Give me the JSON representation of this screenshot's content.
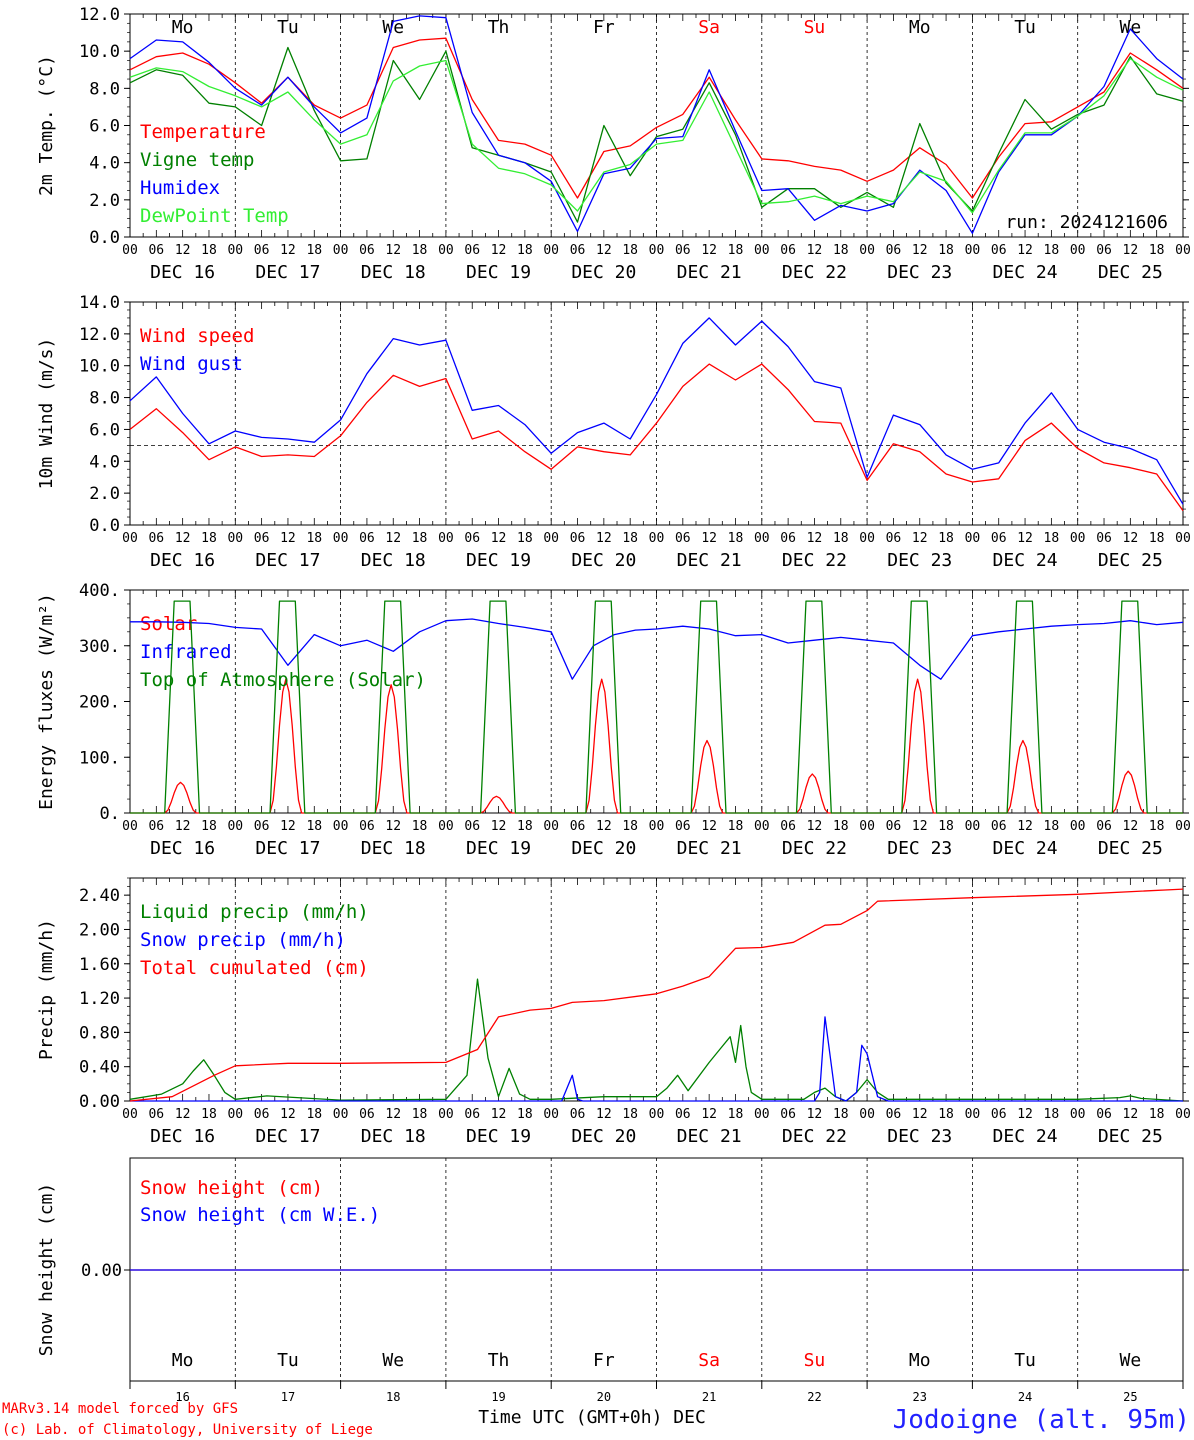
{
  "run_label": "run: 2024121606",
  "colors": {
    "red": "#ff0000",
    "green": "#008000",
    "blue": "#0000ff",
    "light_green": "#33ee33",
    "grid": "#000000"
  },
  "footer": {
    "model": "MARv3.14 model forced by GFS",
    "credit": "(c) Lab. of Climatology, University of Liege",
    "xlabel": "Time UTC (GMT+0h) DEC",
    "station": "Jodoigne (alt. 95m)"
  },
  "chart_data": [
    {
      "type": "line",
      "ylabel": "2m Temp. (°C)",
      "ylim": [
        0,
        12
      ],
      "ytick_labels": [
        "0.0",
        "2.0",
        "4.0",
        "6.0",
        "8.0",
        "10.0",
        "12.0"
      ],
      "day_abbrs": [
        "Mo",
        "Tu",
        "We",
        "Th",
        "Fr",
        "Sa",
        "Su",
        "Mo",
        "Tu",
        "We"
      ],
      "hour_ticks": [
        "00",
        "06",
        "12",
        "18"
      ],
      "date_labels": [
        "DEC 16",
        "DEC 17",
        "DEC 18",
        "DEC 19",
        "DEC 20",
        "DEC 21",
        "DEC 22",
        "DEC 23",
        "DEC 24",
        "DEC 25"
      ],
      "x_unit": "days since Dec 16 00 UTC",
      "xlim": [
        0,
        10
      ],
      "series": [
        {
          "name": "Temperature",
          "color": "#ff0000",
          "x": [
            0,
            0.25,
            0.5,
            0.75,
            1,
            1.25,
            1.5,
            1.75,
            2,
            2.25,
            2.5,
            2.75,
            3,
            3.25,
            3.5,
            3.75,
            4,
            4.25,
            4.5,
            4.75,
            5,
            5.25,
            5.5,
            5.75,
            6,
            6.25,
            6.5,
            6.75,
            7,
            7.25,
            7.5,
            7.75,
            8,
            8.25,
            8.5,
            8.75,
            9,
            9.25,
            9.5,
            9.75,
            10
          ],
          "y": [
            9.0,
            9.7,
            9.9,
            9.3,
            8.3,
            7.2,
            8.6,
            7.1,
            6.4,
            7.1,
            10.2,
            10.6,
            10.7,
            7.4,
            5.2,
            5.0,
            4.4,
            2.1,
            4.6,
            4.9,
            5.9,
            6.6,
            8.6,
            6.3,
            4.2,
            4.1,
            3.8,
            3.6,
            3.0,
            3.6,
            4.8,
            3.9,
            2.1,
            4.3,
            6.1,
            6.2,
            7.0,
            7.8,
            9.9,
            9.0,
            8.0
          ]
        },
        {
          "name": "Vigne temp",
          "color": "#008000",
          "x": [
            0,
            0.25,
            0.5,
            0.75,
            1,
            1.25,
            1.5,
            1.75,
            2,
            2.25,
            2.5,
            2.75,
            3,
            3.25,
            3.5,
            3.75,
            4,
            4.25,
            4.5,
            4.75,
            5,
            5.25,
            5.5,
            5.75,
            6,
            6.25,
            6.5,
            6.75,
            7,
            7.25,
            7.5,
            7.75,
            8,
            8.25,
            8.5,
            8.75,
            9,
            9.25,
            9.5,
            9.75,
            10
          ],
          "y": [
            8.3,
            9.0,
            8.7,
            7.2,
            7.0,
            6.0,
            10.2,
            6.8,
            4.1,
            4.2,
            9.5,
            7.4,
            10.0,
            4.8,
            4.4,
            4.0,
            3.5,
            0.8,
            6.0,
            3.3,
            5.4,
            5.8,
            8.3,
            5.5,
            1.6,
            2.6,
            2.6,
            1.6,
            2.4,
            1.6,
            6.1,
            2.9,
            1.4,
            4.5,
            7.4,
            5.8,
            6.6,
            7.1,
            9.7,
            7.7,
            7.3
          ]
        },
        {
          "name": "Humidex",
          "color": "#0000ff",
          "x": [
            0,
            0.25,
            0.5,
            0.75,
            1,
            1.25,
            1.5,
            1.75,
            2,
            2.25,
            2.5,
            2.75,
            3,
            3.25,
            3.5,
            3.75,
            4,
            4.25,
            4.5,
            4.75,
            5,
            5.25,
            5.5,
            5.75,
            6,
            6.25,
            6.5,
            6.75,
            7,
            7.25,
            7.5,
            7.75,
            8,
            8.25,
            8.5,
            8.75,
            9,
            9.25,
            9.5,
            9.75,
            10
          ],
          "y": [
            9.6,
            10.6,
            10.5,
            9.4,
            8.0,
            7.1,
            8.6,
            7.0,
            5.6,
            6.4,
            11.6,
            11.9,
            11.8,
            6.7,
            4.4,
            4.0,
            3.0,
            0.3,
            3.4,
            3.7,
            5.3,
            5.4,
            9.0,
            5.7,
            2.5,
            2.6,
            0.9,
            1.7,
            1.4,
            1.8,
            3.6,
            2.5,
            0.2,
            3.5,
            5.5,
            5.5,
            6.5,
            8.1,
            11.2,
            9.6,
            8.5
          ]
        },
        {
          "name": "DewPoint Temp",
          "color": "#33ee33",
          "x": [
            0,
            0.25,
            0.5,
            0.75,
            1,
            1.25,
            1.5,
            1.75,
            2,
            2.25,
            2.5,
            2.75,
            3,
            3.25,
            3.5,
            3.75,
            4,
            4.25,
            4.5,
            4.75,
            5,
            5.25,
            5.5,
            5.75,
            6,
            6.25,
            6.5,
            6.75,
            7,
            7.25,
            7.5,
            7.75,
            8,
            8.25,
            8.5,
            8.75,
            9,
            9.25,
            9.5,
            9.75,
            10
          ],
          "y": [
            8.6,
            9.1,
            8.9,
            8.1,
            7.6,
            7.0,
            7.8,
            6.3,
            5.0,
            5.5,
            8.4,
            9.2,
            9.5,
            5.0,
            3.7,
            3.4,
            2.8,
            1.4,
            3.5,
            3.9,
            5.0,
            5.2,
            7.8,
            4.8,
            1.8,
            1.9,
            2.2,
            1.8,
            2.2,
            1.9,
            3.5,
            3.0,
            1.3,
            3.6,
            5.6,
            5.6,
            6.5,
            7.6,
            9.6,
            8.6,
            7.9
          ]
        }
      ]
    },
    {
      "type": "line",
      "ylabel": "10m Wind (m/s)",
      "ylim": [
        0,
        14
      ],
      "ytick_labels": [
        "0.0",
        "2.0",
        "4.0",
        "6.0",
        "8.0",
        "10.0",
        "12.0",
        "14.0"
      ],
      "reference_line": 5,
      "hour_ticks": [
        "00",
        "06",
        "12",
        "18"
      ],
      "date_labels": [
        "DEC 16",
        "DEC 17",
        "DEC 18",
        "DEC 19",
        "DEC 20",
        "DEC 21",
        "DEC 22",
        "DEC 23",
        "DEC 24",
        "DEC 25"
      ],
      "xlim": [
        0,
        10
      ],
      "series": [
        {
          "name": "Wind speed",
          "color": "#ff0000",
          "x": [
            0,
            0.25,
            0.5,
            0.75,
            1,
            1.25,
            1.5,
            1.75,
            2,
            2.25,
            2.5,
            2.75,
            3,
            3.25,
            3.5,
            3.75,
            4,
            4.25,
            4.5,
            4.75,
            5,
            5.25,
            5.5,
            5.75,
            6,
            6.25,
            6.5,
            6.75,
            7,
            7.25,
            7.5,
            7.75,
            8,
            8.25,
            8.5,
            8.75,
            9,
            9.25,
            9.5,
            9.75,
            10
          ],
          "y": [
            6.0,
            7.3,
            5.8,
            4.1,
            4.9,
            4.3,
            4.4,
            4.3,
            5.6,
            7.7,
            9.4,
            8.7,
            9.2,
            5.4,
            5.9,
            4.6,
            3.5,
            4.9,
            4.6,
            4.4,
            6.4,
            8.7,
            10.1,
            9.1,
            10.1,
            8.5,
            6.5,
            6.4,
            2.8,
            5.1,
            4.6,
            3.2,
            2.7,
            2.9,
            5.3,
            6.4,
            4.8,
            3.9,
            3.6,
            3.2,
            0.9
          ]
        },
        {
          "name": "Wind gust",
          "color": "#0000ff",
          "x": [
            0,
            0.25,
            0.5,
            0.75,
            1,
            1.25,
            1.5,
            1.75,
            2,
            2.25,
            2.5,
            2.75,
            3,
            3.25,
            3.5,
            3.75,
            4,
            4.25,
            4.5,
            4.75,
            5,
            5.25,
            5.5,
            5.75,
            6,
            6.25,
            6.5,
            6.75,
            7,
            7.25,
            7.5,
            7.75,
            8,
            8.25,
            8.5,
            8.75,
            9,
            9.25,
            9.5,
            9.75,
            10
          ],
          "y": [
            7.8,
            9.3,
            7.0,
            5.1,
            5.9,
            5.5,
            5.4,
            5.2,
            6.6,
            9.5,
            11.7,
            11.3,
            11.6,
            7.2,
            7.5,
            6.3,
            4.5,
            5.8,
            6.4,
            5.4,
            8.2,
            11.4,
            13.0,
            11.3,
            12.8,
            11.2,
            9.0,
            8.6,
            3.0,
            6.9,
            6.3,
            4.4,
            3.5,
            3.9,
            6.4,
            8.3,
            6.0,
            5.2,
            4.8,
            4.1,
            1.3
          ]
        }
      ]
    },
    {
      "type": "line",
      "ylabel": "Energy fluxes (W/m²)",
      "ylim": [
        0,
        400
      ],
      "ytick_labels": [
        "0.",
        "100.",
        "200.",
        "300.",
        "400."
      ],
      "hour_ticks": [
        "00",
        "06",
        "12",
        "18"
      ],
      "date_labels": [
        "DEC 16",
        "DEC 17",
        "DEC 18",
        "DEC 19",
        "DEC 20",
        "DEC 21",
        "DEC 22",
        "DEC 23",
        "DEC 24",
        "DEC 25"
      ],
      "xlim": [
        0,
        10
      ],
      "series": [
        {
          "name": "Solar",
          "color": "#ff0000",
          "daily_peaks": [
            55,
            240,
            230,
            30,
            240,
            130,
            70,
            240,
            130,
            75
          ]
        },
        {
          "name": "Infrared",
          "color": "#0000ff",
          "x": [
            0,
            0.25,
            0.5,
            0.75,
            1,
            1.25,
            1.5,
            1.75,
            2,
            2.25,
            2.5,
            2.75,
            3,
            3.25,
            3.5,
            3.75,
            4,
            4.2,
            4.4,
            4.6,
            4.8,
            5,
            5.25,
            5.5,
            5.75,
            6,
            6.25,
            6.5,
            6.75,
            7,
            7.25,
            7.5,
            7.7,
            8,
            8.25,
            8.5,
            8.75,
            9,
            9.25,
            9.5,
            9.75,
            10
          ],
          "y": [
            343,
            343,
            342,
            340,
            333,
            330,
            265,
            320,
            300,
            310,
            290,
            325,
            345,
            348,
            340,
            333,
            325,
            240,
            300,
            320,
            328,
            330,
            335,
            330,
            318,
            320,
            305,
            310,
            315,
            310,
            305,
            265,
            240,
            318,
            325,
            330,
            335,
            338,
            340,
            345,
            338,
            342
          ]
        },
        {
          "name": "Top of Atmosphere (Solar)",
          "color": "#008000",
          "daily_peak": 380
        }
      ]
    },
    {
      "type": "line",
      "ylabel": "Precip (mm/h)",
      "ylim": [
        0,
        2.6
      ],
      "ytick_labels": [
        "0.00",
        "0.40",
        "0.80",
        "1.20",
        "1.60",
        "2.00",
        "2.40"
      ],
      "hour_ticks": [
        "00",
        "06",
        "12",
        "18"
      ],
      "date_labels": [
        "DEC 16",
        "DEC 17",
        "DEC 18",
        "DEC 19",
        "DEC 20",
        "DEC 21",
        "DEC 22",
        "DEC 23",
        "DEC 24",
        "DEC 25"
      ],
      "xlim": [
        0,
        10
      ],
      "series": [
        {
          "name": "Liquid precip (mm/h)",
          "color": "#008000",
          "x": [
            0,
            0.3,
            0.5,
            0.6,
            0.7,
            0.8,
            0.9,
            1.0,
            1.3,
            2.0,
            3.0,
            3.2,
            3.3,
            3.4,
            3.5,
            3.6,
            3.7,
            3.8,
            4.0,
            4.5,
            5.0,
            5.1,
            5.2,
            5.3,
            5.5,
            5.6,
            5.7,
            5.75,
            5.8,
            5.85,
            5.9,
            6.0,
            6.4,
            6.5,
            6.6,
            6.7,
            6.8,
            6.9,
            7.0,
            7.1,
            7.2,
            7.5,
            8.0,
            9.0,
            9.4,
            9.5,
            9.6,
            10
          ],
          "y": [
            0.02,
            0.08,
            0.2,
            0.35,
            0.48,
            0.3,
            0.1,
            0.02,
            0.06,
            0.01,
            0.02,
            0.3,
            1.42,
            0.5,
            0.05,
            0.38,
            0.08,
            0.02,
            0.02,
            0.05,
            0.05,
            0.15,
            0.3,
            0.12,
            0.45,
            0.6,
            0.75,
            0.45,
            0.88,
            0.4,
            0.1,
            0.02,
            0.02,
            0.1,
            0.15,
            0.05,
            0.0,
            0.1,
            0.25,
            0.1,
            0.02,
            0.02,
            0.02,
            0.02,
            0.04,
            0.06,
            0.03,
            0.0
          ]
        },
        {
          "name": "Snow precip (mm/h)",
          "color": "#0000ff",
          "x": [
            0,
            4.1,
            4.2,
            4.25,
            4.3,
            4.4,
            6.5,
            6.55,
            6.6,
            6.7,
            6.8,
            6.9,
            6.95,
            7.0,
            7.1,
            7.2,
            10
          ],
          "y": [
            0,
            0,
            0.3,
            0.02,
            0,
            0,
            0,
            0.1,
            0.98,
            0.05,
            0,
            0.1,
            0.65,
            0.55,
            0.05,
            0,
            0
          ]
        },
        {
          "name": "Total cumulated (cm)",
          "color": "#ff0000",
          "x": [
            0,
            0.4,
            0.8,
            1.0,
            1.5,
            2.0,
            3.0,
            3.3,
            3.5,
            3.8,
            4.0,
            4.2,
            4.5,
            5.0,
            5.25,
            5.5,
            5.75,
            6.0,
            6.3,
            6.6,
            6.75,
            7.0,
            7.1,
            8.0,
            9.0,
            10
          ],
          "y": [
            0.0,
            0.05,
            0.3,
            0.41,
            0.44,
            0.44,
            0.45,
            0.6,
            0.98,
            1.06,
            1.08,
            1.15,
            1.17,
            1.25,
            1.34,
            1.45,
            1.78,
            1.79,
            1.85,
            2.05,
            2.06,
            2.22,
            2.33,
            2.37,
            2.41,
            2.47
          ]
        }
      ]
    },
    {
      "type": "line",
      "ylabel": "Snow height (cm)",
      "ylim": [
        -1,
        1
      ],
      "ytick_labels": [
        "0.00"
      ],
      "day_abbrs": [
        "Mo",
        "Tu",
        "We",
        "Th",
        "Fr",
        "Sa",
        "Su",
        "Mo",
        "Tu",
        "We"
      ],
      "day_numbers": [
        "16",
        "17",
        "18",
        "19",
        "20",
        "21",
        "22",
        "23",
        "24",
        "25"
      ],
      "xlim": [
        0,
        10
      ],
      "series": [
        {
          "name": "Snow height (cm)",
          "color": "#ff0000",
          "x": [
            0,
            10
          ],
          "y": [
            0,
            0
          ]
        },
        {
          "name": "Snow height (cm W.E.)",
          "color": "#0000ff",
          "x": [
            0,
            10
          ],
          "y": [
            0,
            0
          ]
        }
      ]
    }
  ]
}
